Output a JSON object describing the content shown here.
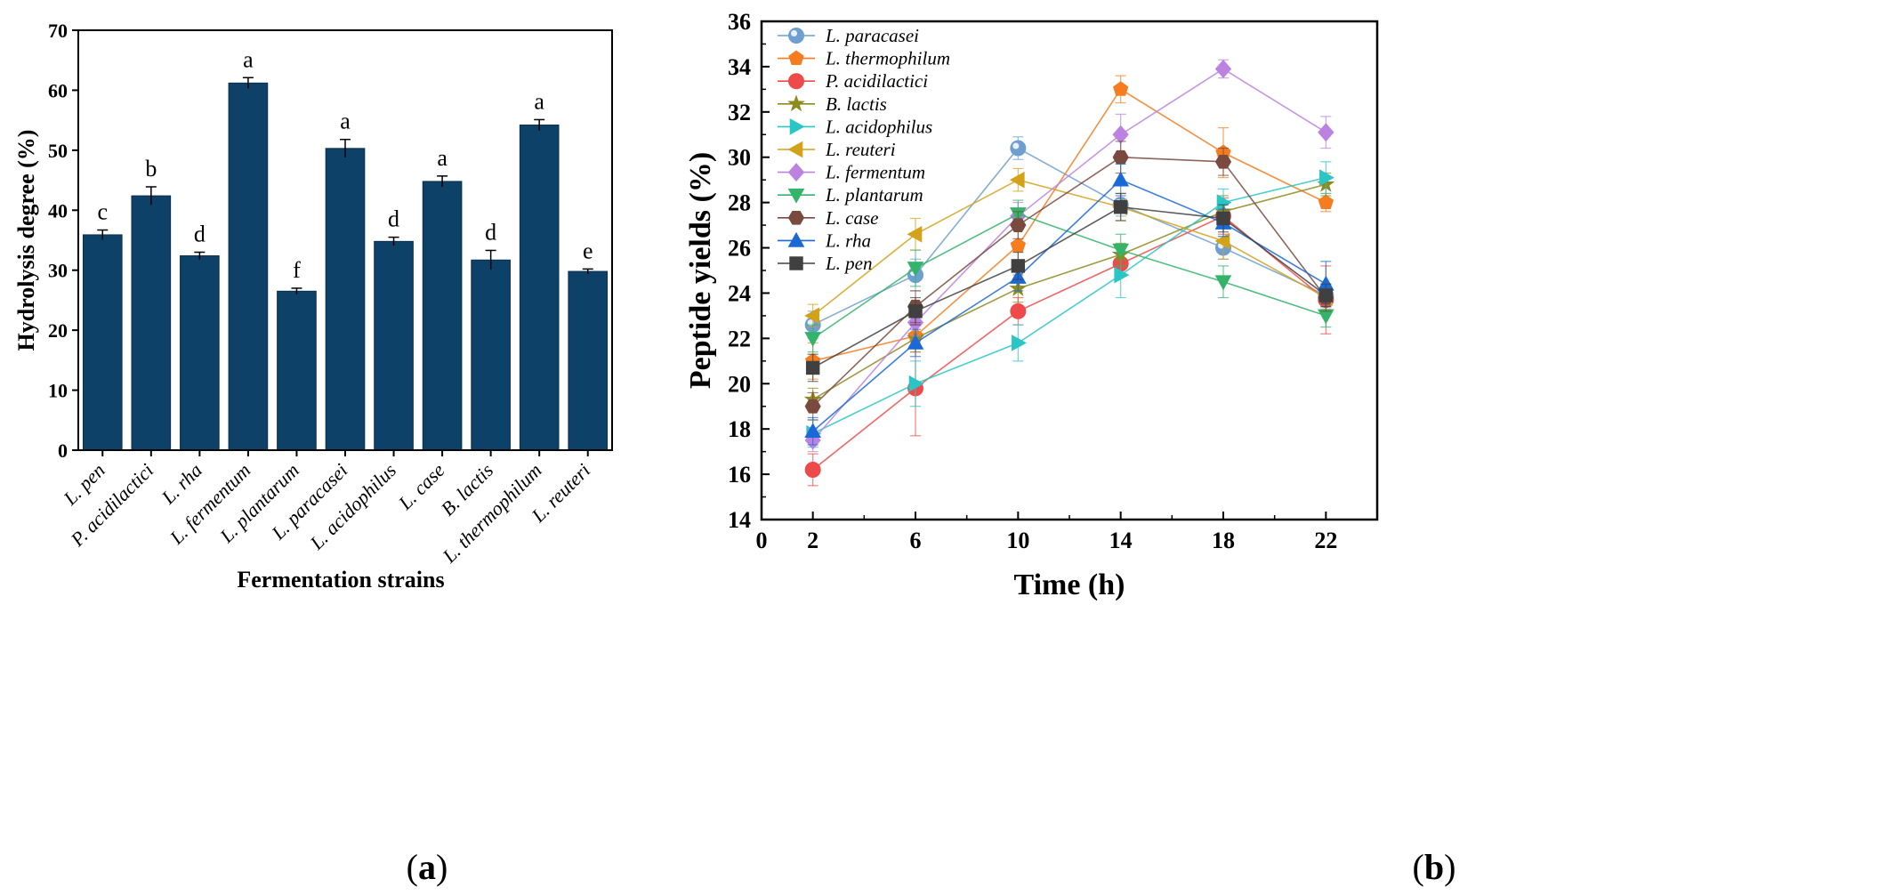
{
  "chart_data": [
    {
      "type": "bar",
      "panel": "a",
      "title": "",
      "xlabel": "Fermentation strains",
      "ylabel": "Hydrolysis degree (%)",
      "ylim": [
        0,
        70
      ],
      "yticks": [
        0,
        10,
        20,
        30,
        40,
        50,
        60,
        70
      ],
      "color": "#0d4168",
      "categories": [
        "L. pen",
        "P. acidilactici",
        "L. rha",
        "L. fermentum",
        "L. plantarum",
        "L. paracasei",
        "L. acidophilus",
        "L. case",
        "B. lactis",
        "L. thermophilum",
        "L. reuteri"
      ],
      "values": [
        35.9,
        42.4,
        32.4,
        61.2,
        26.5,
        50.3,
        34.8,
        44.8,
        31.7,
        54.2,
        29.8
      ],
      "errors": [
        0.8,
        1.5,
        0.6,
        0.9,
        0.5,
        1.5,
        0.7,
        0.9,
        1.6,
        0.9,
        0.4
      ],
      "letters": [
        "c",
        "b",
        "d",
        "a",
        "f",
        "a",
        "d",
        "a",
        "d",
        "a",
        "e"
      ]
    },
    {
      "type": "line",
      "panel": "b",
      "title": "",
      "xlabel": "Time (h)",
      "ylabel": "Peptide yields (%)",
      "xlim": [
        0,
        24
      ],
      "ylim": [
        14,
        36
      ],
      "xticks": [
        0,
        2,
        6,
        10,
        14,
        18,
        22
      ],
      "yticks": [
        14,
        16,
        18,
        20,
        22,
        24,
        26,
        28,
        30,
        32,
        34,
        36
      ],
      "x": [
        2,
        6,
        10,
        14,
        18,
        22
      ],
      "legend_position": "top-left",
      "series": [
        {
          "name": "L. paracasei",
          "marker": "circle-shaded",
          "color": "#6f9fd0",
          "values": [
            22.6,
            24.8,
            30.4,
            27.9,
            26.0,
            23.9
          ],
          "errors": [
            0.6,
            0.7,
            0.5,
            0.5,
            0.5,
            0.4
          ]
        },
        {
          "name": "L. thermophilum",
          "marker": "pentagon",
          "color": "#f57d1f",
          "values": [
            21.0,
            22.1,
            26.1,
            33.0,
            30.2,
            28.0
          ],
          "errors": [
            0.8,
            0.7,
            0.8,
            0.6,
            1.1,
            0.4
          ]
        },
        {
          "name": "P. acidilactici",
          "marker": "circle",
          "color": "#ee4a4a",
          "values": [
            16.2,
            19.8,
            23.2,
            25.3,
            27.4,
            23.7
          ],
          "errors": [
            0.7,
            2.1,
            0.6,
            0.5,
            0.8,
            1.5
          ]
        },
        {
          "name": "B. lactis",
          "marker": "star",
          "color": "#8d8a1e",
          "values": [
            19.3,
            22.0,
            24.2,
            25.7,
            27.6,
            28.8
          ],
          "errors": [
            0.5,
            0.6,
            0.6,
            0.5,
            0.7,
            0.5
          ]
        },
        {
          "name": "L. acidophilus",
          "marker": "triangle-right",
          "color": "#2ac6c6",
          "values": [
            17.8,
            20.0,
            21.8,
            24.8,
            28.0,
            29.1
          ],
          "errors": [
            0.6,
            1.0,
            0.8,
            1.0,
            0.6,
            0.7
          ]
        },
        {
          "name": "L. reuteri",
          "marker": "triangle-left",
          "color": "#d3a21b",
          "values": [
            23.0,
            26.6,
            29.0,
            27.8,
            26.3,
            23.8
          ],
          "errors": [
            0.5,
            0.7,
            0.5,
            0.6,
            0.8,
            0.5
          ]
        },
        {
          "name": "L. fermentum",
          "marker": "diamond",
          "color": "#bb82e2",
          "values": [
            17.5,
            22.7,
            27.4,
            31.0,
            33.9,
            31.1
          ],
          "errors": [
            0.5,
            0.6,
            0.6,
            0.9,
            0.4,
            0.7
          ]
        },
        {
          "name": "L. plantarum",
          "marker": "triangle-down",
          "color": "#34b36b",
          "values": [
            22.0,
            25.1,
            27.5,
            25.9,
            24.5,
            23.0
          ],
          "errors": [
            0.6,
            0.8,
            0.6,
            0.7,
            0.7,
            0.5
          ]
        },
        {
          "name": "L. case",
          "marker": "hexagon",
          "color": "#7a4a3f",
          "values": [
            19.0,
            23.4,
            27.0,
            30.0,
            29.8,
            23.8
          ],
          "errors": [
            0.6,
            0.7,
            0.6,
            0.7,
            0.6,
            0.6
          ]
        },
        {
          "name": "L. rha",
          "marker": "triangle-up",
          "color": "#1a69d6",
          "values": [
            17.9,
            21.8,
            24.7,
            29.0,
            27.1,
            24.4
          ],
          "errors": [
            0.6,
            0.6,
            0.6,
            0.7,
            0.6,
            1.0
          ]
        },
        {
          "name": "L. pen",
          "marker": "square",
          "color": "#404040",
          "values": [
            20.7,
            23.2,
            25.2,
            27.8,
            27.3,
            23.9
          ],
          "errors": [
            0.6,
            0.6,
            0.6,
            0.6,
            0.6,
            0.5
          ]
        }
      ]
    }
  ],
  "panel_labels": {
    "a_open": "(",
    "a_letter": "a",
    "a_close": ")",
    "b_open": "(",
    "b_letter": "b",
    "b_close": ")"
  }
}
